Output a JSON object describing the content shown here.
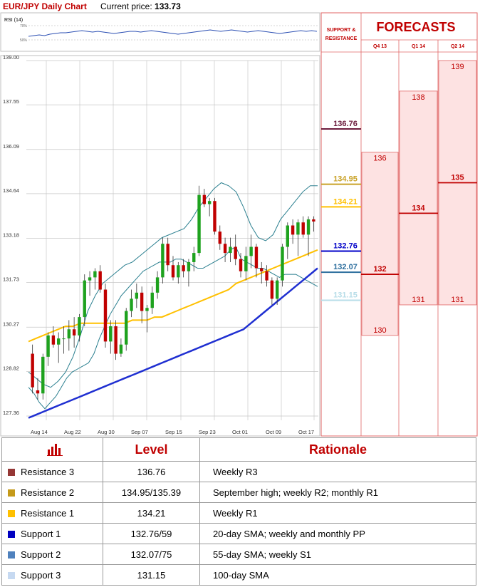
{
  "header": {
    "title": "EUR/JPY Daily Chart",
    "price_label": "Current price:",
    "price_value": "133.73"
  },
  "rsi": {
    "label": "RSI (14)",
    "ticks": [
      "70%",
      "50%"
    ]
  },
  "forecast_panel": {
    "sr_title": [
      "SUPPORT &",
      "RESISTANCE"
    ],
    "title": "FORECASTS",
    "columns": [
      "Q4 13",
      "Q1 14",
      "Q2 14"
    ]
  },
  "chart_data": {
    "type": "candlestick",
    "title": "EUR/JPY Daily Chart",
    "y_ticks": [
      139.0,
      137.55,
      136.09,
      134.64,
      133.18,
      131.73,
      130.27,
      128.82,
      127.36
    ],
    "y_tick_labels": [
      "139.00",
      "137.55",
      "136.09",
      "134.64",
      "133.18",
      "131.73",
      "130.27",
      "128.82",
      "127.36"
    ],
    "ylim": [
      127.36,
      139.0
    ],
    "x_tick_labels": [
      "Aug 14",
      "Aug 22",
      "Aug 30",
      "Sep 07",
      "Sep 15",
      "Sep 23",
      "Oct 01",
      "Oct 09",
      "Oct 17"
    ],
    "candles": [
      {
        "o": 129.4,
        "h": 129.7,
        "l": 128.1,
        "c": 128.3
      },
      {
        "o": 128.2,
        "h": 128.6,
        "l": 127.9,
        "c": 128.1
      },
      {
        "o": 128.1,
        "h": 129.4,
        "l": 127.9,
        "c": 129.3
      },
      {
        "o": 129.3,
        "h": 130.1,
        "l": 129.0,
        "c": 130.0
      },
      {
        "o": 130.0,
        "h": 130.3,
        "l": 129.6,
        "c": 129.7
      },
      {
        "o": 129.7,
        "h": 130.1,
        "l": 129.1,
        "c": 129.9
      },
      {
        "o": 129.9,
        "h": 130.3,
        "l": 129.4,
        "c": 129.9
      },
      {
        "o": 129.9,
        "h": 130.5,
        "l": 129.5,
        "c": 130.2
      },
      {
        "o": 130.2,
        "h": 130.6,
        "l": 129.6,
        "c": 130.0
      },
      {
        "o": 130.0,
        "h": 130.7,
        "l": 129.8,
        "c": 130.6
      },
      {
        "o": 130.6,
        "h": 132.0,
        "l": 130.3,
        "c": 131.8
      },
      {
        "o": 131.8,
        "h": 132.1,
        "l": 131.3,
        "c": 131.9
      },
      {
        "o": 131.9,
        "h": 132.2,
        "l": 131.5,
        "c": 132.1
      },
      {
        "o": 132.1,
        "h": 132.3,
        "l": 131.4,
        "c": 131.5
      },
      {
        "o": 131.5,
        "h": 131.7,
        "l": 129.6,
        "c": 129.8
      },
      {
        "o": 129.8,
        "h": 130.5,
        "l": 129.4,
        "c": 130.3
      },
      {
        "o": 130.3,
        "h": 130.5,
        "l": 129.2,
        "c": 129.4
      },
      {
        "o": 129.4,
        "h": 129.9,
        "l": 129.3,
        "c": 129.7
      },
      {
        "o": 129.7,
        "h": 130.9,
        "l": 129.5,
        "c": 130.8
      },
      {
        "o": 130.8,
        "h": 131.5,
        "l": 130.6,
        "c": 131.2
      },
      {
        "o": 131.2,
        "h": 131.7,
        "l": 130.9,
        "c": 131.4
      },
      {
        "o": 131.4,
        "h": 131.6,
        "l": 130.4,
        "c": 130.8
      },
      {
        "o": 130.8,
        "h": 131.0,
        "l": 130.1,
        "c": 130.9
      },
      {
        "o": 130.9,
        "h": 131.6,
        "l": 130.7,
        "c": 131.4
      },
      {
        "o": 131.4,
        "h": 132.1,
        "l": 131.2,
        "c": 131.9
      },
      {
        "o": 131.9,
        "h": 133.2,
        "l": 131.7,
        "c": 133.0
      },
      {
        "o": 133.0,
        "h": 133.2,
        "l": 132.1,
        "c": 132.3
      },
      {
        "o": 132.3,
        "h": 132.6,
        "l": 131.8,
        "c": 131.9
      },
      {
        "o": 131.9,
        "h": 132.4,
        "l": 131.7,
        "c": 132.3
      },
      {
        "o": 132.3,
        "h": 132.5,
        "l": 131.9,
        "c": 132.1
      },
      {
        "o": 132.1,
        "h": 132.5,
        "l": 131.6,
        "c": 132.4
      },
      {
        "o": 132.4,
        "h": 132.9,
        "l": 132.1,
        "c": 132.7
      },
      {
        "o": 132.7,
        "h": 134.9,
        "l": 132.6,
        "c": 134.6
      },
      {
        "o": 134.6,
        "h": 134.8,
        "l": 134.2,
        "c": 134.3
      },
      {
        "o": 134.3,
        "h": 134.5,
        "l": 133.9,
        "c": 134.4
      },
      {
        "o": 134.4,
        "h": 134.5,
        "l": 133.3,
        "c": 133.4
      },
      {
        "o": 133.4,
        "h": 133.6,
        "l": 132.8,
        "c": 133.0
      },
      {
        "o": 133.0,
        "h": 133.2,
        "l": 132.4,
        "c": 132.7
      },
      {
        "o": 132.7,
        "h": 133.2,
        "l": 132.4,
        "c": 132.9
      },
      {
        "o": 132.9,
        "h": 133.3,
        "l": 132.3,
        "c": 132.5
      },
      {
        "o": 132.5,
        "h": 132.7,
        "l": 131.9,
        "c": 132.1
      },
      {
        "o": 132.1,
        "h": 132.9,
        "l": 131.8,
        "c": 132.6
      },
      {
        "o": 132.6,
        "h": 133.3,
        "l": 132.2,
        "c": 132.9
      },
      {
        "o": 132.9,
        "h": 133.0,
        "l": 131.9,
        "c": 132.2
      },
      {
        "o": 132.2,
        "h": 132.4,
        "l": 131.7,
        "c": 132.1
      },
      {
        "o": 132.1,
        "h": 132.3,
        "l": 131.6,
        "c": 131.8
      },
      {
        "o": 131.8,
        "h": 131.9,
        "l": 131.0,
        "c": 131.2
      },
      {
        "o": 131.2,
        "h": 131.9,
        "l": 131.0,
        "c": 131.8
      },
      {
        "o": 131.8,
        "h": 133.0,
        "l": 131.6,
        "c": 132.9
      },
      {
        "o": 132.9,
        "h": 133.7,
        "l": 132.5,
        "c": 133.6
      },
      {
        "o": 133.6,
        "h": 133.8,
        "l": 133.0,
        "c": 133.3
      },
      {
        "o": 133.3,
        "h": 133.8,
        "l": 132.6,
        "c": 133.7
      },
      {
        "o": 133.7,
        "h": 133.9,
        "l": 133.2,
        "c": 133.3
      },
      {
        "o": 133.3,
        "h": 133.9,
        "l": 132.6,
        "c": 133.8
      },
      {
        "o": 133.8,
        "h": 133.9,
        "l": 133.4,
        "c": 133.73
      }
    ],
    "bollinger_upper": [
      128.8,
      128.6,
      128.4,
      128.3,
      128.5,
      128.8,
      129.3,
      130.0,
      130.8,
      131.3,
      131.7,
      131.9,
      132.1,
      132.3,
      132.4,
      132.6,
      132.8,
      133.0,
      133.2,
      133.3,
      133.4,
      133.5,
      133.8,
      134.2,
      134.5,
      134.8,
      135.0,
      134.9,
      134.7,
      134.2,
      133.6,
      133.2,
      133.1,
      133.3,
      133.8,
      134.1,
      134.4,
      134.7,
      134.9,
      134.9
    ],
    "bollinger_lower": [
      128.3,
      128.1,
      127.8,
      127.6,
      127.8,
      128.0,
      128.3,
      128.6,
      128.8,
      128.9,
      129.0,
      129.1,
      129.4,
      129.9,
      130.3,
      130.7,
      131.0,
      131.3,
      131.5,
      131.7,
      131.9,
      132.1,
      132.2,
      132.3,
      132.4,
      132.4,
      132.4,
      132.5,
      132.5,
      132.4,
      132.3,
      132.2,
      132.2,
      132.3,
      132.4,
      132.5,
      132.6,
      132.8,
      132.9,
      132.5,
      132.4,
      132.3,
      132.2,
      132.2,
      132.1,
      132.0,
      131.9,
      132.0,
      132.0,
      132.0,
      131.9,
      131.8,
      131.7,
      131.6
    ],
    "sma20": [
      129.8,
      129.9,
      130.0,
      130.1,
      130.2,
      130.3,
      130.3,
      130.4,
      130.4,
      130.4,
      130.4,
      130.4,
      130.4,
      130.4,
      130.5,
      130.5,
      130.5,
      130.6,
      130.6,
      130.7,
      130.8,
      130.9,
      131.0,
      131.1,
      131.2,
      131.3,
      131.4,
      131.5,
      131.7,
      131.8,
      131.9,
      132.0,
      132.1,
      132.2,
      132.3,
      132.4,
      132.5,
      132.6,
      132.7,
      132.8
    ],
    "sma100": [
      127.3,
      127.4,
      127.5,
      127.6,
      127.7,
      127.8,
      127.9,
      128.0,
      128.1,
      128.2,
      128.3,
      128.4,
      128.5,
      128.6,
      128.7,
      128.8,
      128.9,
      129.0,
      129.1,
      129.2,
      129.3,
      129.4,
      129.5,
      129.6,
      129.7,
      129.8,
      129.9,
      130.0,
      130.1,
      130.2,
      130.4,
      130.6,
      130.8,
      131.0,
      131.2,
      131.4,
      131.6,
      131.8,
      132.0,
      132.2
    ],
    "rsi_values": [
      55,
      56,
      57,
      56,
      58,
      59,
      60,
      60,
      61,
      62,
      63,
      62,
      61,
      62,
      61,
      60,
      59,
      60,
      61,
      62,
      62,
      61,
      62,
      63,
      62,
      61,
      60,
      59,
      58,
      59,
      60,
      61,
      62,
      63,
      64,
      63,
      62,
      63,
      64,
      63,
      62,
      61,
      62,
      63,
      62,
      61,
      60,
      59,
      60,
      61,
      62,
      63,
      62,
      63,
      62
    ],
    "levels": [
      {
        "name": "Resistance 3",
        "label": "136.76",
        "value": 136.76,
        "color": "#6b1b3c"
      },
      {
        "name": "Resistance 2",
        "label": "134.95",
        "value": 134.95,
        "color": "#c9a227"
      },
      {
        "name": "Resistance 1",
        "label": "134.21",
        "value": 134.21,
        "color": "#ffc000"
      },
      {
        "name": "Support 1",
        "label": "132.76",
        "value": 132.76,
        "color": "#0000c8"
      },
      {
        "name": "Support 2",
        "label": "132.07",
        "value": 132.07,
        "color": "#2e6f9e"
      },
      {
        "name": "Support 3",
        "label": "131.15",
        "value": 131.15,
        "color": "#b7dde8"
      }
    ],
    "forecasts": [
      {
        "quarter": "Q4 13",
        "low": 130,
        "mid": 132,
        "high": 136
      },
      {
        "quarter": "Q1 14",
        "low": 131,
        "mid": 134,
        "high": 138
      },
      {
        "quarter": "Q2 14",
        "low": 131,
        "mid": 135,
        "high": 139
      }
    ]
  },
  "table": {
    "headers": [
      "Level",
      "Rationale"
    ],
    "rows": [
      {
        "name": "Resistance 3",
        "level": "136.76",
        "rationale": "Weekly R3",
        "color": "#953735"
      },
      {
        "name": "Resistance 2",
        "level": "134.95/135.39",
        "rationale": "September high; weekly R2; monthly R1",
        "color": "#c59a1a"
      },
      {
        "name": "Resistance 1",
        "level": "134.21",
        "rationale": "Weekly R1",
        "color": "#ffc000"
      },
      {
        "name": "Support 1",
        "level": "132.76/59",
        "rationale": "20-day SMA; weekly and monthly PP",
        "color": "#0000c0"
      },
      {
        "name": "Support 2",
        "level": "132.07/75",
        "rationale": "55-day SMA; weekly S1",
        "color": "#4f81bd"
      },
      {
        "name": "Support 3",
        "level": "131.15",
        "rationale": "100-day SMA",
        "color": "#c6d9f1"
      }
    ]
  }
}
